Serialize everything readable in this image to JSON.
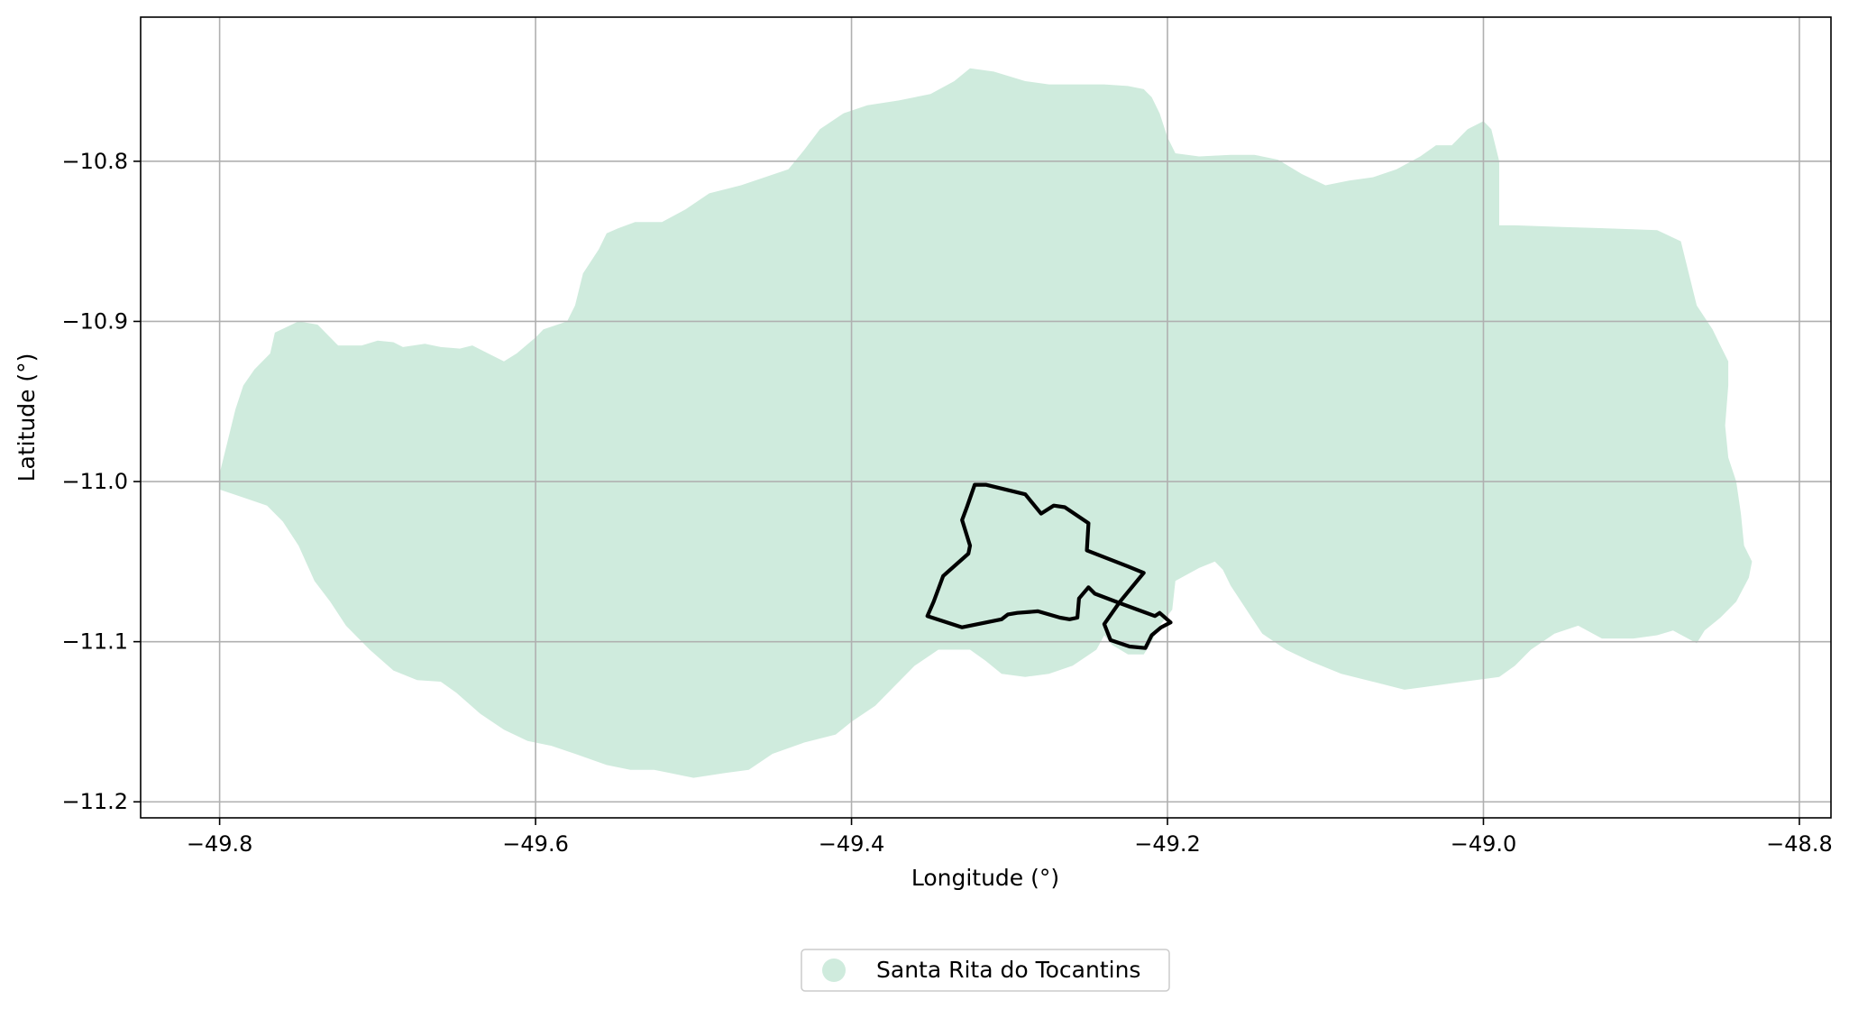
{
  "map": {
    "xlabel": "Longitude (°)",
    "ylabel": "Latitude (°)",
    "xlim": [
      -49.85,
      -48.78
    ],
    "ylim": [
      -11.21,
      -10.71
    ],
    "x_ticks": [
      {
        "value": -49.8,
        "label": "−49.8"
      },
      {
        "value": -49.6,
        "label": "−49.6"
      },
      {
        "value": -49.4,
        "label": "−49.4"
      },
      {
        "value": -49.2,
        "label": "−49.2"
      },
      {
        "value": -49.0,
        "label": "−49.0"
      },
      {
        "value": -48.8,
        "label": "−48.8"
      }
    ],
    "y_ticks": [
      {
        "value": -10.8,
        "label": "−10.8"
      },
      {
        "value": -10.9,
        "label": "−10.9"
      },
      {
        "value": -11.0,
        "label": "−11.0"
      },
      {
        "value": -11.1,
        "label": "−11.1"
      },
      {
        "value": -11.2,
        "label": "−11.2"
      }
    ],
    "grid": true,
    "legend": {
      "placement": "bottom-center",
      "entry": "Santa Rita do Tocantins"
    },
    "colors": {
      "region_fill": "#cfebdd",
      "outline": "#000000",
      "grid": "#b0b0b0",
      "axes": "#000000"
    },
    "region": {
      "name": "Santa Rita do Tocantins",
      "coords": [
        [
          -49.8,
          -10.995
        ],
        [
          -49.795,
          -10.975
        ],
        [
          -49.79,
          -10.955
        ],
        [
          -49.785,
          -10.94
        ],
        [
          -49.778,
          -10.93
        ],
        [
          -49.768,
          -10.92
        ],
        [
          -49.765,
          -10.907
        ],
        [
          -49.75,
          -10.9
        ],
        [
          -49.738,
          -10.902
        ],
        [
          -49.73,
          -10.91
        ],
        [
          -49.725,
          -10.915
        ],
        [
          -49.71,
          -10.915
        ],
        [
          -49.7,
          -10.912
        ],
        [
          -49.69,
          -10.913
        ],
        [
          -49.684,
          -10.916
        ],
        [
          -49.67,
          -10.914
        ],
        [
          -49.66,
          -10.916
        ],
        [
          -49.648,
          -10.917
        ],
        [
          -49.64,
          -10.915
        ],
        [
          -49.63,
          -10.92
        ],
        [
          -49.62,
          -10.925
        ],
        [
          -49.612,
          -10.92
        ],
        [
          -49.6,
          -10.91
        ],
        [
          -49.595,
          -10.905
        ],
        [
          -49.58,
          -10.9
        ],
        [
          -49.575,
          -10.89
        ],
        [
          -49.57,
          -10.87
        ],
        [
          -49.56,
          -10.855
        ],
        [
          -49.555,
          -10.845
        ],
        [
          -49.548,
          -10.842
        ],
        [
          -49.537,
          -10.838
        ],
        [
          -49.528,
          -10.838
        ],
        [
          -49.52,
          -10.838
        ],
        [
          -49.505,
          -10.83
        ],
        [
          -49.49,
          -10.82
        ],
        [
          -49.47,
          -10.815
        ],
        [
          -49.455,
          -10.81
        ],
        [
          -49.44,
          -10.805
        ],
        [
          -49.43,
          -10.793
        ],
        [
          -49.42,
          -10.78
        ],
        [
          -49.405,
          -10.77
        ],
        [
          -49.39,
          -10.765
        ],
        [
          -49.37,
          -10.762
        ],
        [
          -49.35,
          -10.758
        ],
        [
          -49.335,
          -10.75
        ],
        [
          -49.325,
          -10.742
        ],
        [
          -49.31,
          -10.744
        ],
        [
          -49.29,
          -10.75
        ],
        [
          -49.275,
          -10.752
        ],
        [
          -49.255,
          -10.752
        ],
        [
          -49.24,
          -10.752
        ],
        [
          -49.225,
          -10.753
        ],
        [
          -49.215,
          -10.755
        ],
        [
          -49.21,
          -10.76
        ],
        [
          -49.205,
          -10.77
        ],
        [
          -49.2,
          -10.785
        ],
        [
          -49.195,
          -10.795
        ],
        [
          -49.18,
          -10.797
        ],
        [
          -49.16,
          -10.796
        ],
        [
          -49.145,
          -10.796
        ],
        [
          -49.13,
          -10.799
        ],
        [
          -49.115,
          -10.808
        ],
        [
          -49.1,
          -10.815
        ],
        [
          -49.085,
          -10.812
        ],
        [
          -49.07,
          -10.81
        ],
        [
          -49.055,
          -10.805
        ],
        [
          -49.04,
          -10.797
        ],
        [
          -49.03,
          -10.79
        ],
        [
          -49.02,
          -10.79
        ],
        [
          -49.01,
          -10.78
        ],
        [
          -49.0,
          -10.775
        ],
        [
          -48.995,
          -10.78
        ],
        [
          -48.99,
          -10.8
        ],
        [
          -48.99,
          -10.82
        ],
        [
          -48.99,
          -10.84
        ],
        [
          -48.98,
          -10.84
        ],
        [
          -48.95,
          -10.841
        ],
        [
          -48.92,
          -10.842
        ],
        [
          -48.89,
          -10.843
        ],
        [
          -48.875,
          -10.85
        ],
        [
          -48.87,
          -10.87
        ],
        [
          -48.865,
          -10.89
        ],
        [
          -48.855,
          -10.905
        ],
        [
          -48.85,
          -10.915
        ],
        [
          -48.845,
          -10.925
        ],
        [
          -48.845,
          -10.94
        ],
        [
          -48.847,
          -10.965
        ],
        [
          -48.845,
          -10.985
        ],
        [
          -48.84,
          -11.0
        ],
        [
          -48.837,
          -11.02
        ],
        [
          -48.835,
          -11.04
        ],
        [
          -48.83,
          -11.05
        ],
        [
          -48.832,
          -11.06
        ],
        [
          -48.84,
          -11.075
        ],
        [
          -48.85,
          -11.085
        ],
        [
          -48.86,
          -11.093
        ],
        [
          -48.865,
          -11.101
        ],
        [
          -48.88,
          -11.093
        ],
        [
          -48.89,
          -11.096
        ],
        [
          -48.905,
          -11.098
        ],
        [
          -48.925,
          -11.098
        ],
        [
          -48.94,
          -11.09
        ],
        [
          -48.955,
          -11.095
        ],
        [
          -48.97,
          -11.105
        ],
        [
          -48.98,
          -11.115
        ],
        [
          -48.99,
          -11.122
        ],
        [
          -49.005,
          -11.124
        ],
        [
          -49.02,
          -11.126
        ],
        [
          -49.035,
          -11.128
        ],
        [
          -49.05,
          -11.13
        ],
        [
          -49.07,
          -11.125
        ],
        [
          -49.09,
          -11.12
        ],
        [
          -49.11,
          -11.112
        ],
        [
          -49.125,
          -11.105
        ],
        [
          -49.14,
          -11.095
        ],
        [
          -49.15,
          -11.08
        ],
        [
          -49.16,
          -11.065
        ],
        [
          -49.165,
          -11.055
        ],
        [
          -49.17,
          -11.05
        ],
        [
          -49.18,
          -11.054
        ],
        [
          -49.195,
          -11.062
        ],
        [
          -49.197,
          -11.08
        ],
        [
          -49.205,
          -11.09
        ],
        [
          -49.21,
          -11.1
        ],
        [
          -49.215,
          -11.108
        ],
        [
          -49.225,
          -11.108
        ],
        [
          -49.235,
          -11.102
        ],
        [
          -49.24,
          -11.096
        ],
        [
          -49.245,
          -11.105
        ],
        [
          -49.26,
          -11.115
        ],
        [
          -49.275,
          -11.12
        ],
        [
          -49.29,
          -11.122
        ],
        [
          -49.305,
          -11.12
        ],
        [
          -49.315,
          -11.112
        ],
        [
          -49.325,
          -11.105
        ],
        [
          -49.345,
          -11.105
        ],
        [
          -49.36,
          -11.115
        ],
        [
          -49.37,
          -11.125
        ],
        [
          -49.385,
          -11.14
        ],
        [
          -49.4,
          -11.15
        ],
        [
          -49.41,
          -11.158
        ],
        [
          -49.43,
          -11.163
        ],
        [
          -49.45,
          -11.17
        ],
        [
          -49.465,
          -11.18
        ],
        [
          -49.48,
          -11.182
        ],
        [
          -49.5,
          -11.185
        ],
        [
          -49.515,
          -11.182
        ],
        [
          -49.525,
          -11.18
        ],
        [
          -49.54,
          -11.18
        ],
        [
          -49.555,
          -11.177
        ],
        [
          -49.575,
          -11.17
        ],
        [
          -49.59,
          -11.165
        ],
        [
          -49.605,
          -11.162
        ],
        [
          -49.62,
          -11.155
        ],
        [
          -49.635,
          -11.145
        ],
        [
          -49.65,
          -11.132
        ],
        [
          -49.66,
          -11.125
        ],
        [
          -49.675,
          -11.124
        ],
        [
          -49.69,
          -11.118
        ],
        [
          -49.705,
          -11.105
        ],
        [
          -49.72,
          -11.09
        ],
        [
          -49.73,
          -11.075
        ],
        [
          -49.74,
          -11.062
        ],
        [
          -49.75,
          -11.04
        ],
        [
          -49.76,
          -11.025
        ],
        [
          -49.77,
          -11.015
        ],
        [
          -49.785,
          -11.01
        ],
        [
          -49.8,
          -11.005
        ]
      ]
    },
    "outline": {
      "coords": [
        [
          -49.322,
          -11.002
        ],
        [
          -49.315,
          -11.002
        ],
        [
          -49.29,
          -11.008
        ],
        [
          -49.28,
          -11.02
        ],
        [
          -49.272,
          -11.015
        ],
        [
          -49.265,
          -11.016
        ],
        [
          -49.25,
          -11.026
        ],
        [
          -49.251,
          -11.043
        ],
        [
          -49.225,
          -11.053
        ],
        [
          -49.215,
          -11.057
        ],
        [
          -49.23,
          -11.075
        ],
        [
          -49.24,
          -11.089
        ],
        [
          -49.236,
          -11.099
        ],
        [
          -49.224,
          -11.103
        ],
        [
          -49.214,
          -11.104
        ],
        [
          -49.21,
          -11.096
        ],
        [
          -49.204,
          -11.091
        ],
        [
          -49.198,
          -11.088
        ],
        [
          -49.205,
          -11.082
        ],
        [
          -49.208,
          -11.084
        ],
        [
          -49.23,
          -11.076
        ],
        [
          -49.246,
          -11.07
        ],
        [
          -49.25,
          -11.066
        ],
        [
          -49.256,
          -11.073
        ],
        [
          -49.257,
          -11.085
        ],
        [
          -49.262,
          -11.086
        ],
        [
          -49.268,
          -11.085
        ],
        [
          -49.282,
          -11.081
        ],
        [
          -49.295,
          -11.082
        ],
        [
          -49.301,
          -11.083
        ],
        [
          -49.305,
          -11.086
        ],
        [
          -49.33,
          -11.091
        ],
        [
          -49.352,
          -11.084
        ],
        [
          -49.348,
          -11.075
        ],
        [
          -49.342,
          -11.059
        ],
        [
          -49.326,
          -11.045
        ],
        [
          -49.325,
          -11.04
        ],
        [
          -49.33,
          -11.024
        ],
        [
          -49.327,
          -11.016
        ],
        [
          -49.322,
          -11.002
        ]
      ]
    }
  }
}
